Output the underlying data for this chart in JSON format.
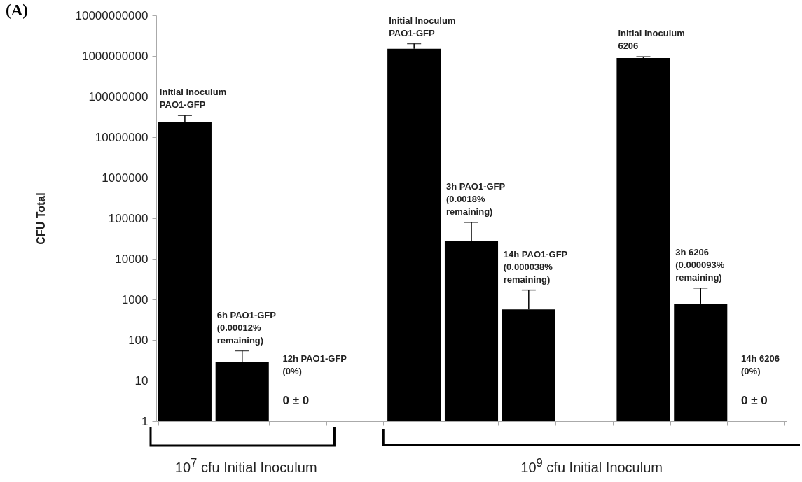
{
  "chart_data": {
    "type": "bar",
    "ylabel": "CFU Total",
    "color": "#000000",
    "log": true,
    "grid": false,
    "tick_labels": "y",
    "categories": [
      "Initial Inoculum\nPAO1-GFP",
      "6h PAO1-GFP\n(0.00012%\nremaining)",
      "12h PAO1-GFP\n(0%)",
      null,
      "Initial Inoculum\nPAO1-GFP",
      "3h PAO1-GFP\n(0.0018%\nremaining)",
      "14h PAO1-GFP\n(0.000038%\nremaining)",
      null,
      "Initial Inoculum\n6206",
      "3h 6206\n(0.000093%\nremaining)",
      "14h 6206\n(0%)"
    ],
    "values": [
      23000000,
      29,
      null,
      null,
      1500000000,
      27000,
      570,
      null,
      890000000,
      790,
      null
    ],
    "errors": [
      [
        23000000,
        34000000
      ],
      [
        29,
        54
      ],
      null,
      null,
      [
        1500000000,
        2000000000
      ],
      [
        27000,
        79000
      ],
      [
        570,
        1700
      ],
      null,
      [
        890000000,
        960000000
      ],
      [
        790,
        1900
      ],
      null
    ],
    "value_labels": [
      null,
      null,
      "0 ± 0",
      null,
      null,
      null,
      null,
      null,
      null,
      null,
      "0 ± 0"
    ],
    "ylim": [
      1,
      10000000000
    ],
    "yticks": [
      1,
      10,
      100,
      1000,
      10000,
      100000,
      1000000,
      10000000,
      100000000,
      1000000000,
      10000000000
    ],
    "annotations": [
      "(A)",
      "10$^{7}$ cfu Initial Inoculum",
      "10$^{9}$ cfu Initial Inoculum"
    ]
  }
}
